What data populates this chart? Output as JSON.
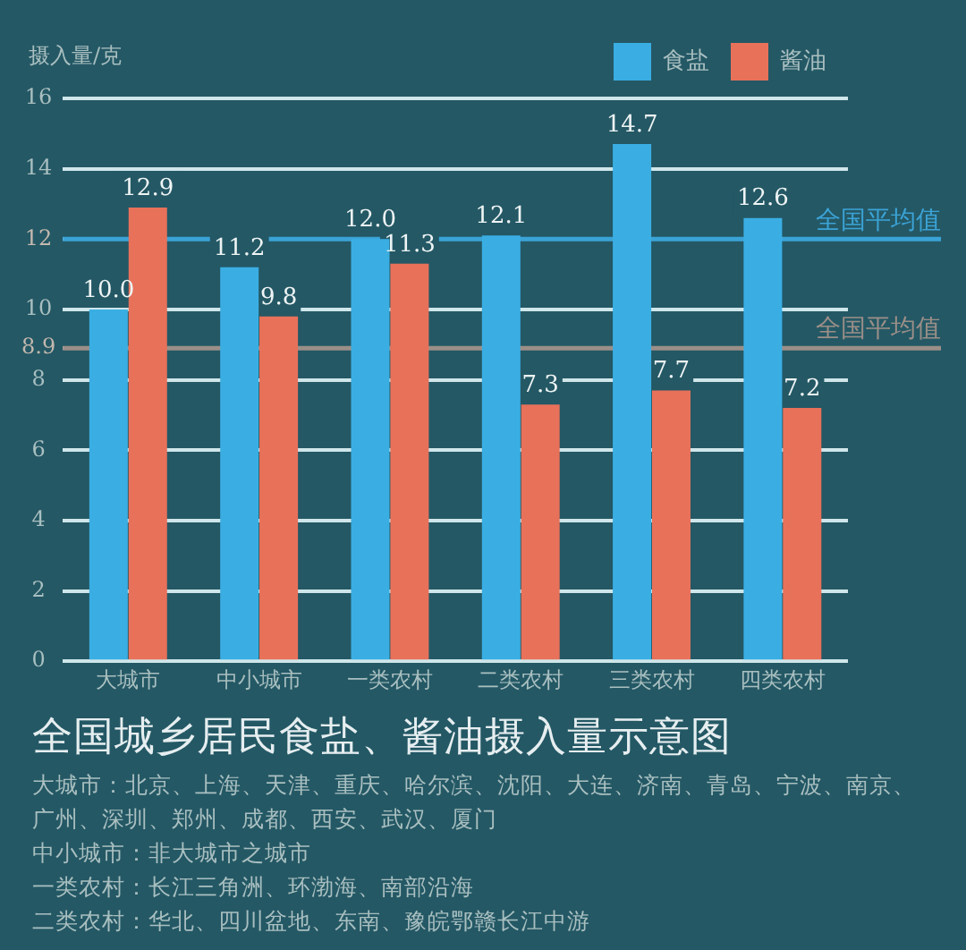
{
  "chart_data": {
    "type": "bar",
    "title": "全国城乡居民食盐、酱油摄入量示意图",
    "ylabel": "摄入量/克",
    "categories": [
      "大城市",
      "中小城市",
      "一类农村",
      "二类农村",
      "三类农村",
      "四类农村"
    ],
    "series": [
      {
        "name": "食盐",
        "color": "#3aaee3",
        "values": [
          10.0,
          11.2,
          12.0,
          12.1,
          14.7,
          12.6
        ],
        "value_labels": [
          "10.0",
          "11.2",
          "12.0",
          "12.1",
          "14.7",
          "12.6"
        ]
      },
      {
        "name": "酱油",
        "color": "#e8715a",
        "values": [
          12.9,
          9.8,
          11.3,
          7.3,
          7.7,
          7.2
        ],
        "value_labels": [
          "12.9",
          "9.8",
          "11.3",
          "7.3",
          "7.7",
          "7.2"
        ]
      }
    ],
    "ylim": [
      0,
      16
    ],
    "yticks": [
      0,
      2,
      4,
      6,
      8,
      8.9,
      10,
      12,
      14,
      16
    ],
    "grid": "y",
    "legend": "top right",
    "ref_lines": [
      {
        "axis": "y",
        "value": 12,
        "label": "全国平均值",
        "color": "#3ba3d6"
      },
      {
        "axis": "y",
        "value": 8.9,
        "label": "全国平均值",
        "color": "#9b8f88"
      }
    ],
    "annotations": [
      "大城市：北京、上海、天津、重庆、哈尔滨、沈阳、大连、济南、青岛、宁波、南京、广州、深圳、郑州、成都、西安、武汉、厦门",
      "中小城市：非大城市之城市",
      "一类农村：长江三角洲、环渤海、南部沿海",
      "二类农村：华北、四川盆地、东南、豫皖鄂赣长江中游"
    ]
  }
}
